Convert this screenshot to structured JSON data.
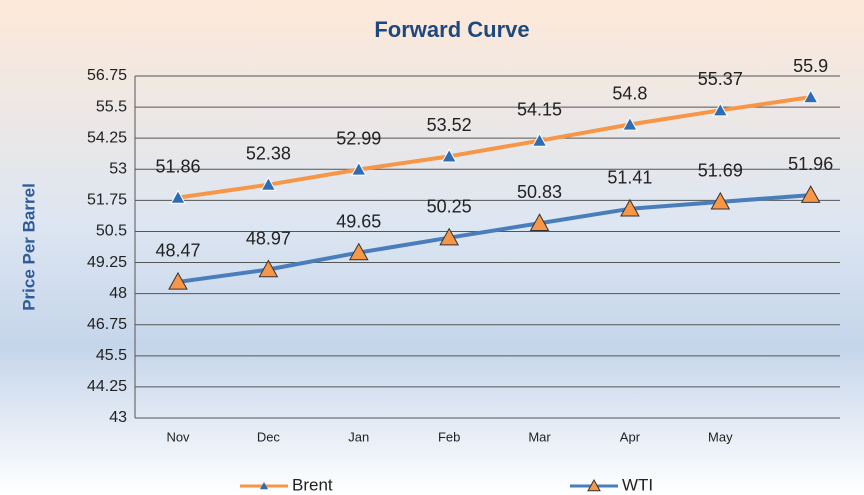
{
  "chart_data": {
    "type": "line",
    "title": "Forward Curve",
    "y_label": "Price Per Barrel",
    "categories": [
      "Nov",
      "Dec",
      "Jan",
      "Feb",
      "Mar",
      "Apr",
      "May",
      null
    ],
    "series": [
      {
        "name": "Brent",
        "color": "#f79646",
        "marker_color": "#2e6db5",
        "values": [
          51.86,
          52.38,
          52.99,
          53.52,
          54.15,
          54.8,
          55.37,
          55.9
        ]
      },
      {
        "name": "WTI",
        "color": "#4a7ebb",
        "marker_color": "#f79646",
        "values": [
          48.47,
          48.97,
          49.65,
          50.25,
          50.83,
          51.41,
          51.69,
          51.96
        ]
      }
    ],
    "ylim": [
      43,
      56.75
    ],
    "yticks": [
      43,
      44.25,
      45.5,
      46.75,
      48,
      49.25,
      50.5,
      51.75,
      53,
      54.25,
      55.5,
      56.75
    ],
    "grid": true,
    "legend": "bottom"
  }
}
